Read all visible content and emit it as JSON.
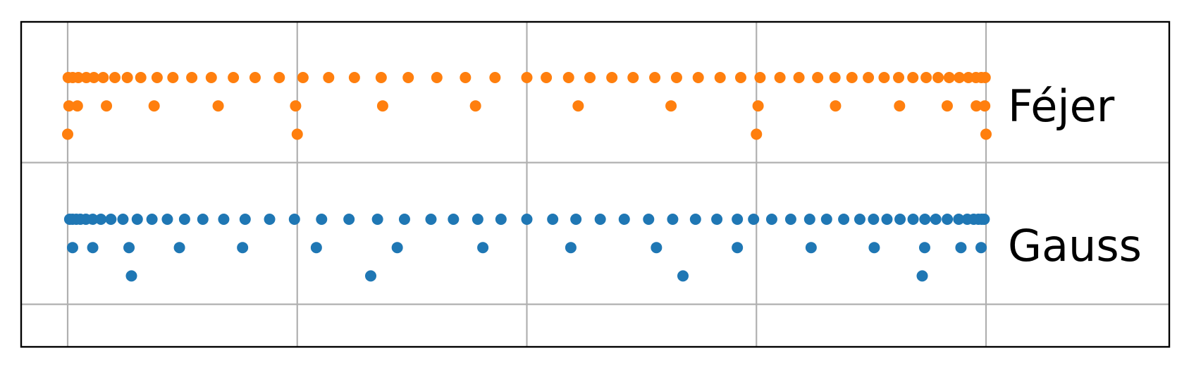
{
  "chart_data": {
    "type": "scatter",
    "title": "",
    "xlabel": "",
    "ylabel": "",
    "xlim": [
      -1.1,
      1.4
    ],
    "ylim": [
      -0.2,
      1.0
    ],
    "grid": true,
    "grid_x_lines": [
      -1.0,
      -0.5,
      0.0,
      0.5,
      1.0
    ],
    "grid_y_lines": [
      0.25,
      0.75
    ],
    "series": [
      {
        "key": "gauss",
        "name": "Gauss",
        "color": "#1f77b4",
        "rows": [
          {
            "y": 0.55,
            "x": [
              -0.9956,
              -0.9893,
              -0.9812,
              -0.9723,
              -0.9603,
              -0.9454,
              -0.9276,
              -0.9058,
              -0.8796,
              -0.8484,
              -0.8164,
              -0.7829,
              -0.7454,
              -0.7056,
              -0.6601,
              -0.6135,
              -0.5602,
              -0.5061,
              -0.447,
              -0.3873,
              -0.3252,
              -0.2664,
              -0.2088,
              -0.1599,
              -0.1069,
              -0.0563,
              0.0,
              0.0563,
              0.1069,
              0.1599,
              0.2122,
              0.2652,
              0.3176,
              0.3673,
              0.4138,
              0.4584,
              0.4938,
              0.5333,
              0.5747,
              0.616,
              0.6528,
              0.6901,
              0.7252,
              0.755,
              0.7843,
              0.8128,
              0.8412,
              0.8669,
              0.8905,
              0.9157,
              0.9405,
              0.9592,
              0.9732,
              0.9835,
              0.9906,
              0.996
            ]
          },
          {
            "y": 0.45,
            "x": [
              -0.9893,
              -0.9454,
              -0.8664,
              -0.7566,
              -0.6191,
              -0.4584,
              -0.2822,
              -0.0958,
              0.0958,
              0.2822,
              0.4584,
              0.6191,
              0.7566,
              0.8664,
              0.9454,
              0.9893
            ]
          },
          {
            "y": 0.35,
            "x": [
              -0.8611,
              -0.34,
              0.34,
              0.8611
            ]
          }
        ]
      },
      {
        "key": "fejer",
        "name": "Féjer",
        "color": "#ff7f0e",
        "rows": [
          {
            "y": 1.05,
            "x": [
              -0.9988,
              -0.9891,
              -0.9768,
              -0.9595,
              -0.9429,
              -0.9227,
              -0.8972,
              -0.8701,
              -0.8408,
              -0.8052,
              -0.7708,
              -0.7297,
              -0.6872,
              -0.6391,
              -0.5918,
              -0.5391,
              -0.4875,
              -0.4316,
              -0.3755,
              -0.3172,
              -0.2583,
              -0.196,
              -0.1338,
              -0.0693,
              0.0,
              0.0424,
              0.0909,
              0.1374,
              0.1852,
              0.2314,
              0.2787,
              0.3261,
              0.3733,
              0.4209,
              0.4658,
              0.5079,
              0.5512,
              0.5926,
              0.6334,
              0.671,
              0.708,
              0.7438,
              0.7781,
              0.8097,
              0.8407,
              0.8697,
              0.8957,
              0.9199,
              0.9419,
              0.9617,
              0.978,
              0.9899,
              0.9981
            ]
          },
          {
            "y": 0.95,
            "x": [
              -0.9972,
              -0.9788,
              -0.9155,
              -0.8117,
              -0.6722,
              -0.5036,
              -0.314,
              -0.1118,
              0.1118,
              0.314,
              0.5036,
              0.6722,
              0.8117,
              0.9155,
              0.9788,
              0.9972
            ]
          },
          {
            "y": 0.85,
            "x": [
              -1.0,
              -0.5,
              0.5,
              1.0
            ]
          }
        ]
      }
    ]
  }
}
